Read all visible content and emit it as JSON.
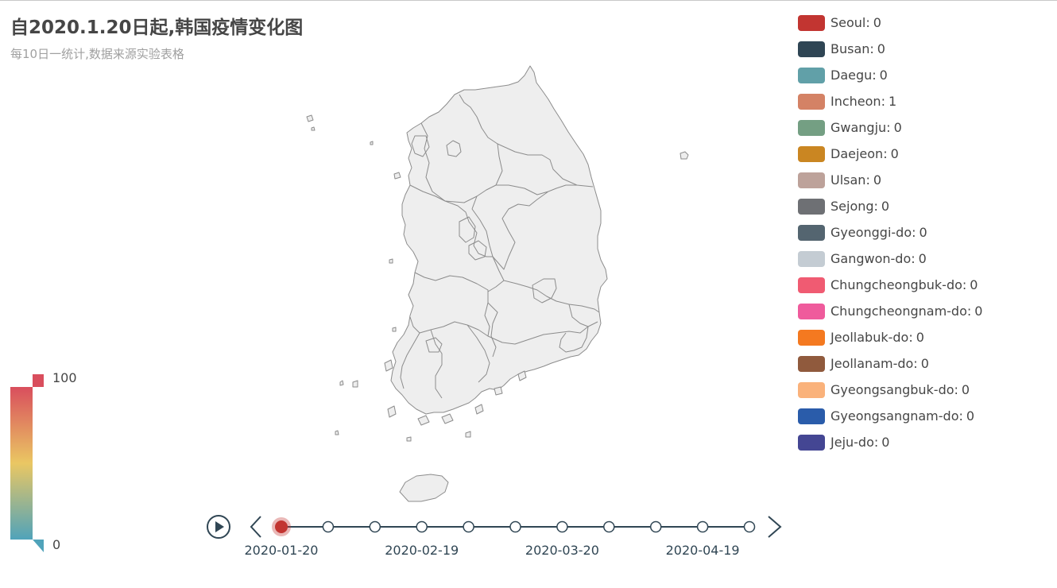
{
  "header": {
    "title": "自2020.1.20日起,韩国疫情变化图",
    "subtitle": "每10日一统计,数据来源实验表格"
  },
  "chart_data": {
    "type": "map",
    "region": "South Korea",
    "current_date": "2020-01-20",
    "series": [
      {
        "name": "Seoul",
        "value": 0,
        "color": "#c23531"
      },
      {
        "name": "Busan",
        "value": 0,
        "color": "#2f4554"
      },
      {
        "name": "Daegu",
        "value": 0,
        "color": "#61a0a8"
      },
      {
        "name": "Incheon",
        "value": 1,
        "color": "#d48265"
      },
      {
        "name": "Gwangju",
        "value": 0,
        "color": "#749f83"
      },
      {
        "name": "Daejeon",
        "value": 0,
        "color": "#ca8622"
      },
      {
        "name": "Ulsan",
        "value": 0,
        "color": "#bda29a"
      },
      {
        "name": "Sejong",
        "value": 0,
        "color": "#6e7074"
      },
      {
        "name": "Gyeonggi-do",
        "value": 0,
        "color": "#546570"
      },
      {
        "name": "Gangwon-do",
        "value": 0,
        "color": "#c4ccd3"
      },
      {
        "name": "Chungcheongbuk-do",
        "value": 0,
        "color": "#f05b72"
      },
      {
        "name": "Chungcheongnam-do",
        "value": 0,
        "color": "#ef5b9c"
      },
      {
        "name": "Jeollabuk-do",
        "value": 0,
        "color": "#f47920"
      },
      {
        "name": "Jeollanam-do",
        "value": 0,
        "color": "#905a3d"
      },
      {
        "name": "Gyeongsangbuk-do",
        "value": 0,
        "color": "#fab27b"
      },
      {
        "name": "Gyeongsangnam-do",
        "value": 0,
        "color": "#2a5caa"
      },
      {
        "name": "Jeju-do",
        "value": 0,
        "color": "#444693"
      }
    ],
    "visual_map": {
      "min": 0,
      "max": 100,
      "min_label": "0",
      "max_label": "100",
      "colors": [
        "#50a3ba",
        "#eac763",
        "#d94e5d"
      ]
    },
    "timeline": {
      "points": [
        "2020-01-20",
        "2020-01-30",
        "2020-02-09",
        "2020-02-19",
        "2020-02-29",
        "2020-03-10",
        "2020-03-20",
        "2020-03-30",
        "2020-04-09",
        "2020-04-19",
        "2020-04-29"
      ],
      "labels": [
        "2020-01-20",
        "2020-02-19",
        "2020-03-20",
        "2020-04-19"
      ],
      "current_index": 0,
      "line_color": "#304654",
      "active_color": "#c23531"
    }
  }
}
